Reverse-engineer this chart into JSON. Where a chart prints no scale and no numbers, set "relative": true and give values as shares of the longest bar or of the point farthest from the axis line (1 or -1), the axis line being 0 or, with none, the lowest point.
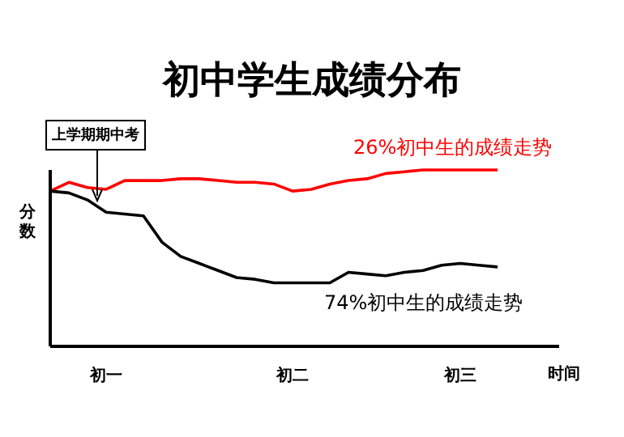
{
  "chart_data": {
    "type": "line",
    "title": "初中学生成绩分布",
    "xlabel": "时间",
    "ylabel": "分数",
    "relative": true,
    "marker": "none",
    "line_style": "solid",
    "categories": [
      null,
      null,
      null,
      "初一",
      null,
      null,
      null,
      null,
      null,
      null,
      null,
      null,
      null,
      "初二",
      null,
      null,
      null,
      null,
      null,
      null,
      null,
      null,
      "初三",
      null,
      null
    ],
    "series": [
      {
        "name": "26%初中生的成绩走势",
        "color": "#ff0000",
        "values": [
          0.88,
          0.93,
          0.9,
          0.89,
          0.94,
          0.94,
          0.94,
          0.95,
          0.95,
          0.94,
          0.93,
          0.93,
          0.92,
          0.88,
          0.89,
          0.92,
          0.94,
          0.95,
          0.98,
          0.99,
          1,
          1,
          1,
          1,
          1
        ]
      },
      {
        "name": "74%初中生的成绩走势",
        "color": "#000000",
        "values": [
          0.88,
          0.87,
          0.83,
          0.76,
          0.75,
          0.74,
          0.59,
          0.51,
          0.47,
          0.43,
          0.39,
          0.38,
          0.36,
          0.36,
          0.36,
          0.36,
          0.42,
          0.41,
          0.4,
          0.42,
          0.43,
          0.46,
          0.47,
          0.46,
          0.45
        ]
      }
    ],
    "annotations": [
      "上学期期中考"
    ]
  }
}
